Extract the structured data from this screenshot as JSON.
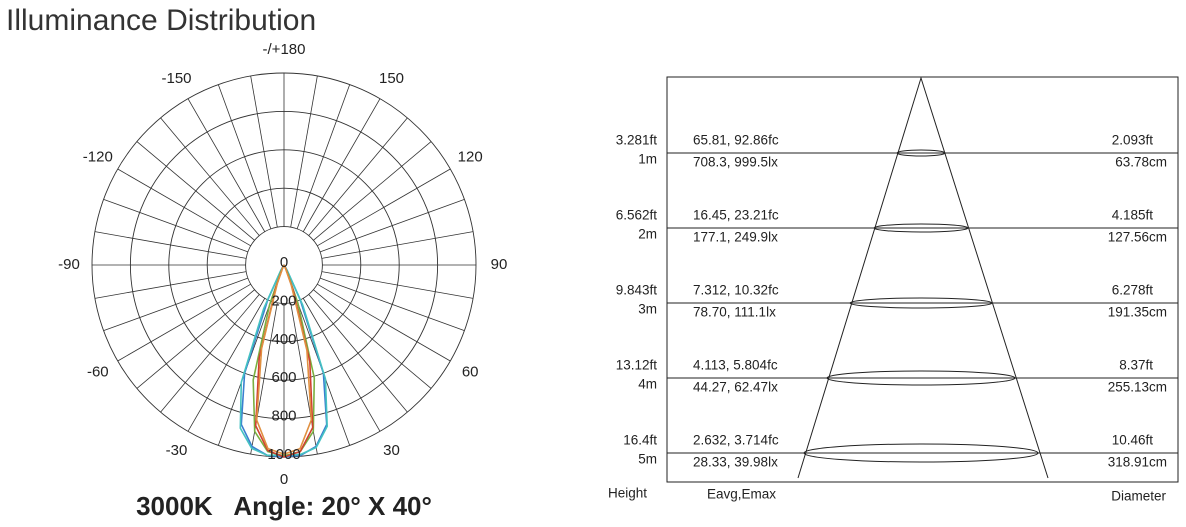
{
  "title": "Illuminance Distribution",
  "polar": {
    "angle_ticks": [
      {
        "value": 180,
        "label": "-/+180"
      },
      -150,
      150,
      -120,
      120,
      -90,
      90,
      -60,
      60,
      -30,
      30,
      0
    ],
    "rlim": [
      0,
      1000
    ],
    "rticks": [
      0,
      200,
      400,
      600,
      800,
      1000
    ],
    "angles": [
      -40,
      -35,
      -30,
      -25,
      -20,
      -15,
      -10,
      -5,
      0,
      5,
      10,
      15,
      20,
      25,
      30,
      35,
      40
    ],
    "series": [
      {
        "color": "#3a7fd0",
        "values": [
          0,
          5,
          30,
          200,
          600,
          860,
          960,
          995,
          1000,
          995,
          960,
          860,
          600,
          200,
          30,
          5,
          0
        ]
      },
      {
        "color": "#45c2c2",
        "values": [
          0,
          5,
          40,
          250,
          650,
          880,
          970,
          995,
          990,
          990,
          965,
          870,
          630,
          230,
          35,
          5,
          0
        ]
      },
      {
        "color": "#7ab040",
        "values": [
          0,
          0,
          5,
          40,
          220,
          620,
          880,
          975,
          995,
          975,
          880,
          610,
          210,
          40,
          5,
          0,
          0
        ]
      },
      {
        "color": "#d04030",
        "values": [
          0,
          0,
          5,
          20,
          120,
          500,
          850,
          970,
          1000,
          975,
          860,
          520,
          140,
          25,
          5,
          0,
          0
        ]
      },
      {
        "color": "#e09040",
        "values": [
          0,
          0,
          3,
          15,
          100,
          450,
          820,
          960,
          985,
          960,
          820,
          460,
          110,
          15,
          3,
          0,
          0
        ]
      }
    ],
    "caption": "3000K   Angle: 20° X 40°"
  },
  "cone": {
    "rows": [
      {
        "height_ft": "3.281ft",
        "height_m": "1m",
        "fc": "65.81, 92.86fc",
        "lx": "708.3, 999.5lx",
        "dia_ft": "2.093ft",
        "dia_cm": "63.78cm"
      },
      {
        "height_ft": "6.562ft",
        "height_m": "2m",
        "fc": "16.45, 23.21fc",
        "lx": "177.1, 249.9lx",
        "dia_ft": "4.185ft",
        "dia_cm": "127.56cm"
      },
      {
        "height_ft": "9.843ft",
        "height_m": "3m",
        "fc": "7.312, 10.32fc",
        "lx": "78.70, 111.1lx",
        "dia_ft": "6.278ft",
        "dia_cm": "191.35cm"
      },
      {
        "height_ft": "13.12ft",
        "height_m": "4m",
        "fc": "4.113, 5.804fc",
        "lx": "44.27, 62.47lx",
        "dia_ft": "8.37ft",
        "dia_cm": "255.13cm"
      },
      {
        "height_ft": "16.4ft",
        "height_m": "5m",
        "fc": "2.632, 3.714fc",
        "lx": "28.33, 39.98lx",
        "dia_ft": "10.46ft",
        "dia_cm": "318.91cm"
      }
    ],
    "footer": {
      "height": "Height",
      "eavg": "Eavg,Emax",
      "diameter": "Diameter"
    }
  }
}
